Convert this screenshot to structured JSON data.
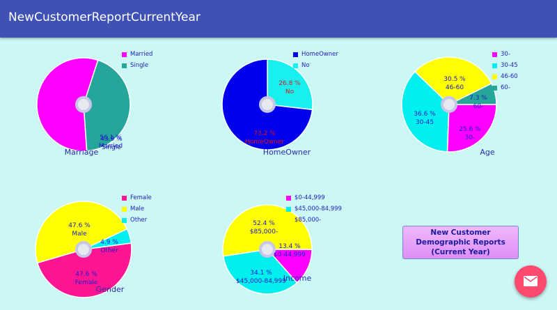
{
  "app": {
    "title": "NewCustomerReportCurrentYear"
  },
  "charts": [
    {
      "key": "marriage",
      "title": "Marriage",
      "type": "pie",
      "slices": [
        {
          "name": "Married",
          "value": 56.1,
          "percent_label": "56.1 %",
          "color": "#ff00ff",
          "label_color": "#1a1ac8"
        },
        {
          "name": "Single",
          "value": 43.9,
          "percent_label": "43.9 %",
          "color": "#26a69a",
          "label_color": "#1a1ac8"
        }
      ]
    },
    {
      "key": "homeowner",
      "title": "HomeOwner",
      "type": "pie",
      "slices": [
        {
          "name": "HomeOwner",
          "value": 73.2,
          "percent_label": "73.2 %",
          "color": "#0000ee",
          "label_color": "#e01010"
        },
        {
          "name": "No",
          "value": 26.8,
          "percent_label": "26.8 %",
          "color": "#18f0f0",
          "label_color": "#d02020"
        }
      ]
    },
    {
      "key": "age",
      "title": "Age",
      "type": "pie",
      "slices": [
        {
          "name": "30-",
          "value": 25.6,
          "percent_label": "25.6 %",
          "color": "#ff00ff",
          "label_color": "#1a1ac8"
        },
        {
          "name": "30-45",
          "value": 36.6,
          "percent_label": "36.6 %",
          "color": "#00f0f0",
          "label_color": "#1a1ac8"
        },
        {
          "name": "46-60",
          "value": 30.5,
          "percent_label": "30.5 %",
          "color": "#ffff00",
          "label_color": "#1a1ac8"
        },
        {
          "name": "60-",
          "value": 7.3,
          "percent_label": "7.3 %",
          "color": "#26a69a",
          "label_color": "#1a1ac8"
        }
      ]
    },
    {
      "key": "gender",
      "title": "Gender",
      "type": "pie",
      "slices": [
        {
          "name": "Female",
          "value": 47.6,
          "percent_label": "47.6 %",
          "color": "#ff1493",
          "label_color": "#1a1ac8"
        },
        {
          "name": "Male",
          "value": 47.6,
          "percent_label": "47.6 %",
          "color": "#ffff00",
          "label_color": "#1a1ac8"
        },
        {
          "name": "Other",
          "value": 4.9,
          "percent_label": "4.9 %",
          "color": "#00f0f0",
          "label_color": "#1a1ac8"
        }
      ]
    },
    {
      "key": "income",
      "title": "Income",
      "type": "pie",
      "slices": [
        {
          "name": "$0-44,999",
          "value": 13.4,
          "percent_label": "13.4 %",
          "color": "#ff00ff",
          "label_color": "#1a1ac8"
        },
        {
          "name": "$45,000-84,999",
          "value": 34.1,
          "percent_label": "34.1 %",
          "color": "#00f0f0",
          "label_color": "#1a1ac8"
        },
        {
          "name": "$85,000-",
          "value": 52.4,
          "percent_label": "52.4 %",
          "color": "#ffff00",
          "label_color": "#1a1ac8"
        }
      ]
    }
  ],
  "action_button": {
    "label": "New Customer Demographic Reports (Current Year)"
  },
  "fab": {
    "icon": "email-icon",
    "color": "#ff4a70"
  }
}
